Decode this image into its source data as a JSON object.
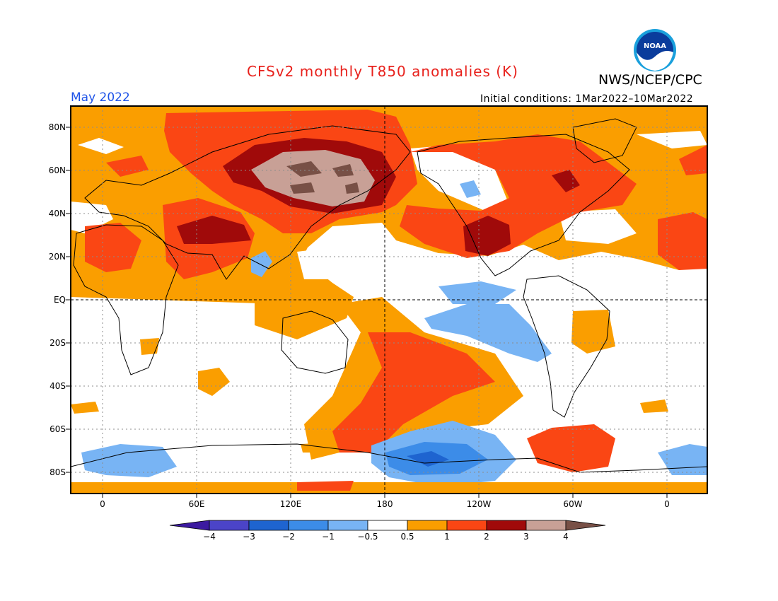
{
  "header": {
    "title": "CFSv2 monthly T850 anomalies (K)",
    "agency": "NWS/NCEP/CPC",
    "month": "May 2022",
    "initial_conditions": "Initial conditions: 1Mar2022–10Mar2022",
    "logo_text": "NOAA"
  },
  "map": {
    "lat_labels": [
      "80N",
      "60N",
      "40N",
      "20N",
      "EQ",
      "20S",
      "40S",
      "60S",
      "80S"
    ],
    "lon_labels": [
      "0",
      "60E",
      "120E",
      "180",
      "120W",
      "60W",
      "0"
    ]
  },
  "legend": {
    "labels": [
      "−4",
      "−3",
      "−2",
      "−1",
      "−0.5",
      "0.5",
      "1",
      "2",
      "3",
      "4"
    ],
    "colors": {
      "below_-4": "#3c1aa0",
      "-4_-3": "#4b44c8",
      "-3_-2": "#1e64d0",
      "-2_-1": "#3c8ce8",
      "-1_-0.5": "#78b4f4",
      "-0.5_0.5": "#ffffff",
      "0.5_1": "#fa9e00",
      "1_2": "#fa4614",
      "2_3": "#a00a0a",
      "3_4": "#c8a096",
      "above_4": "#785046"
    }
  }
}
